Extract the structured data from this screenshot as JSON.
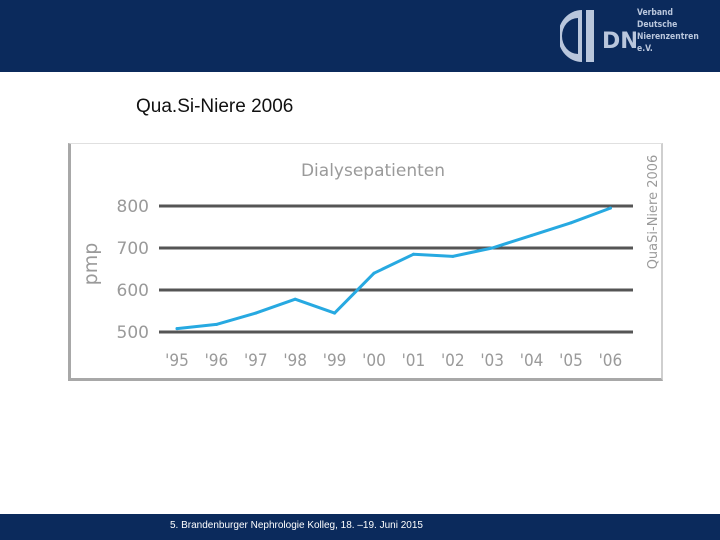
{
  "header": {
    "logo": {
      "letters": "DN",
      "lines": [
        "Verband",
        "Deutsche",
        "Nierenzentren",
        "e.V."
      ]
    }
  },
  "slide": {
    "title": "Qua.Si-Niere 2006"
  },
  "chart_data": {
    "type": "line",
    "title": "Dialysepatienten",
    "side_label": "QuaSi-Niere 2006",
    "ylabel": "pmp",
    "ylim": [
      500,
      800
    ],
    "yticks": [
      500,
      600,
      700,
      800
    ],
    "categories": [
      "'95",
      "'96",
      "'97",
      "'98",
      "'99",
      "'00",
      "'01",
      "'02",
      "'03",
      "'04",
      "'05",
      "'06"
    ],
    "series": [
      {
        "values": [
          508,
          518,
          545,
          578,
          545,
          640,
          685,
          680,
          700,
          730,
          760,
          795
        ]
      }
    ],
    "grid": true,
    "colors": {
      "line": "#27a9e1",
      "grid": "#555555",
      "text": "#9a9a9a"
    }
  },
  "footer": {
    "text": "5. Brandenburger Nephrologie Kolleg, 18. –19. Juni 2015"
  }
}
